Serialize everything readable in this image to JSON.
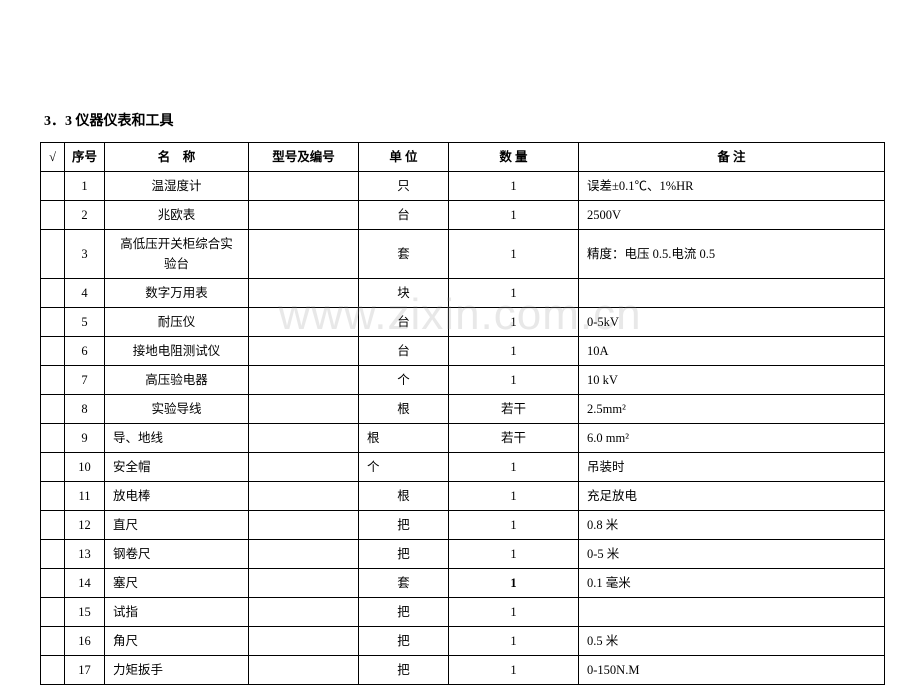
{
  "section_title": "3．3 仪器仪表和工具",
  "watermark": "www.zixin.com.cn",
  "columns": {
    "check": "√",
    "num": "序号",
    "name_prefix": "名",
    "name_suffix": "称",
    "model": "型号及编号",
    "unit": "单 位",
    "qty": "数 量",
    "note": "备 注"
  },
  "rows": [
    {
      "num": "1",
      "name": "温湿度计",
      "name_align": "c",
      "model": "",
      "unit": "只",
      "unit_align": "c",
      "qty": "1",
      "note": "误差±0.1℃、1%HR"
    },
    {
      "num": "2",
      "name": "兆欧表",
      "name_align": "c",
      "model": "",
      "unit": "台",
      "unit_align": "c",
      "qty": "1",
      "note": "2500V"
    },
    {
      "num": "3",
      "name": "高低压开关柜综合实\n验台",
      "name_align": "c",
      "model": "",
      "unit": "套",
      "unit_align": "c",
      "qty": "1",
      "note": "精度：电压 0.5.电流 0.5",
      "tall": true
    },
    {
      "num": "4",
      "name": "数字万用表",
      "name_align": "c",
      "model": "",
      "unit": "块",
      "unit_align": "c",
      "qty": "1",
      "note": ""
    },
    {
      "num": "5",
      "name": "耐压仪",
      "name_align": "c",
      "model": "",
      "unit": "台",
      "unit_align": "c",
      "qty": "1",
      "note": "0-5kV"
    },
    {
      "num": "6",
      "name": "接地电阻测试仪",
      "name_align": "c",
      "model": "",
      "unit": "台",
      "unit_align": "c",
      "qty": "1",
      "note": "10A"
    },
    {
      "num": "7",
      "name": "高压验电器",
      "name_align": "c",
      "model": "",
      "unit": "个",
      "unit_align": "c",
      "qty": "1",
      "note": "10 kV"
    },
    {
      "num": "8",
      "name": "实验导线",
      "name_align": "c",
      "model": "",
      "unit": "根",
      "unit_align": "c",
      "qty": "若干",
      "note": "2.5mm²"
    },
    {
      "num": "9",
      "name": "导、地线",
      "name_align": "l",
      "model": "",
      "unit": "根",
      "unit_align": "l",
      "qty": "若干",
      "note": "6.0 mm²"
    },
    {
      "num": "10",
      "name": "安全帽",
      "name_align": "l",
      "model": "",
      "unit": "个",
      "unit_align": "l",
      "qty": "1",
      "note": "吊装时"
    },
    {
      "num": "11",
      "name": "放电棒",
      "name_align": "l",
      "model": "",
      "unit": "根",
      "unit_align": "c",
      "qty": "1",
      "note": "充足放电"
    },
    {
      "num": "12",
      "name": "直尺",
      "name_align": "l",
      "model": "",
      "unit": "把",
      "unit_align": "c",
      "qty": "1",
      "note": "0.8 米"
    },
    {
      "num": "13",
      "name": "钢卷尺",
      "name_align": "l",
      "model": "",
      "unit": "把",
      "unit_align": "c",
      "qty": "1",
      "note": "0-5 米"
    },
    {
      "num": "14",
      "name": "塞尺",
      "name_align": "l",
      "model": "",
      "unit": "套",
      "unit_align": "c",
      "qty": "1",
      "note": "0.1 毫米",
      "qty_strong": true
    },
    {
      "num": "15",
      "name": "试指",
      "name_align": "l",
      "model": "",
      "unit": "把",
      "unit_align": "c",
      "qty": "1",
      "note": ""
    },
    {
      "num": "16",
      "name": "角尺",
      "name_align": "l",
      "model": "",
      "unit": "把",
      "unit_align": "c",
      "qty": "1",
      "note": "0.5 米"
    },
    {
      "num": "17",
      "name": "力矩扳手",
      "name_align": "l",
      "model": "",
      "unit": "把",
      "unit_align": "c",
      "qty": "1",
      "note": "0-150N.M"
    }
  ]
}
